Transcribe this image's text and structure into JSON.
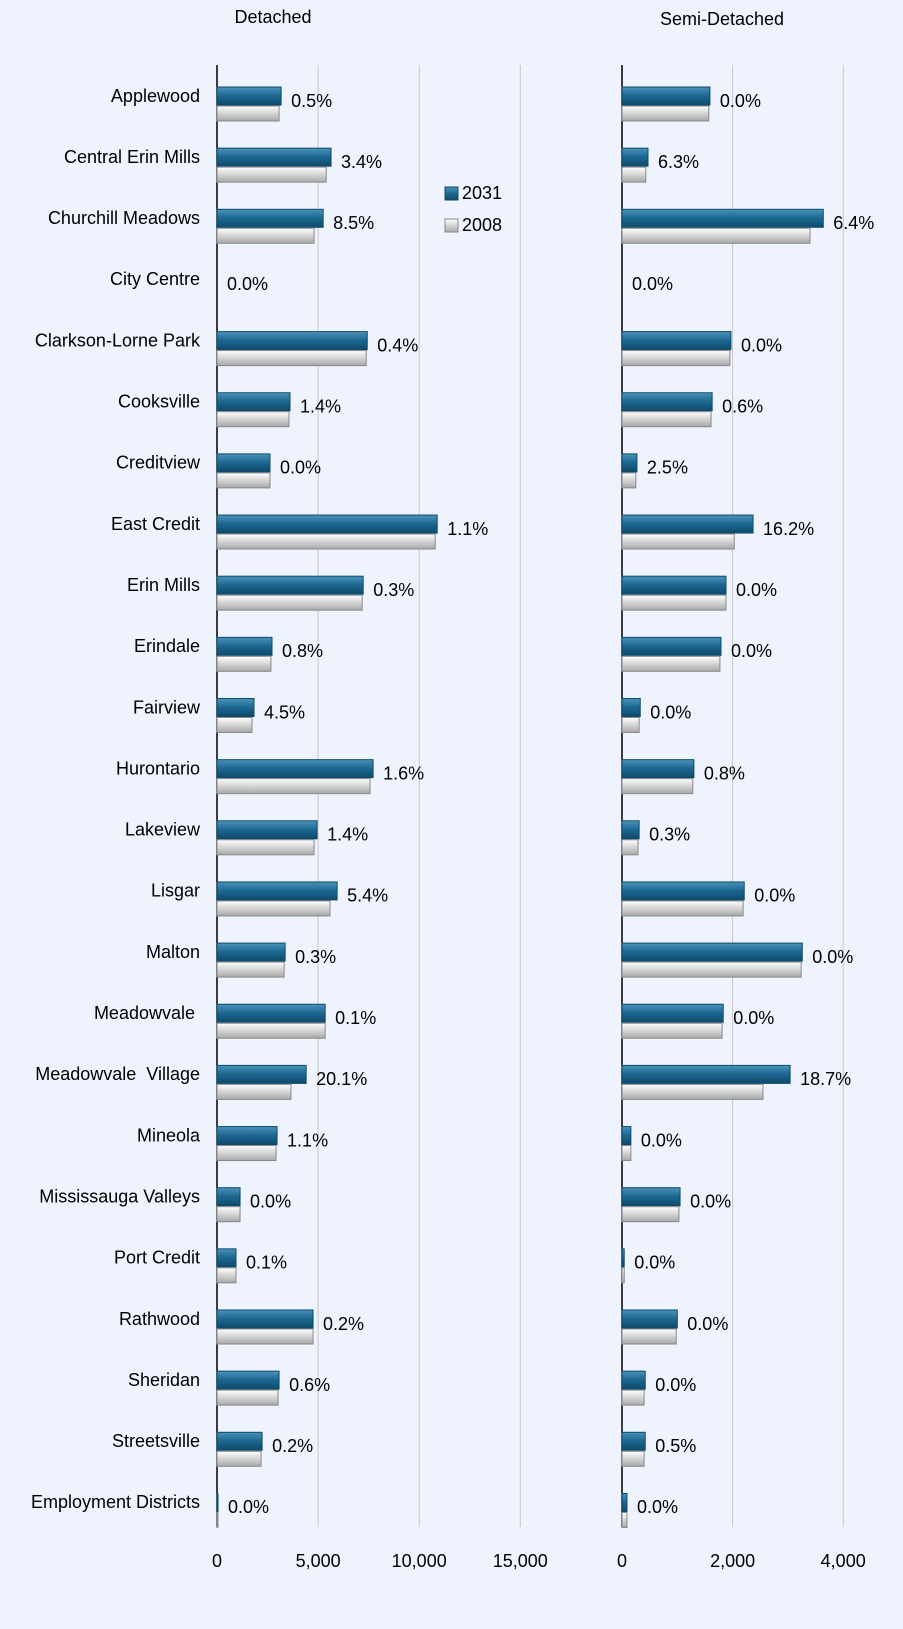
{
  "chart_data": [
    {
      "type": "bar",
      "orientation": "horizontal",
      "title": "Detached",
      "categories": [
        "Applewood",
        "Central Erin Mills",
        "Churchill Meadows",
        "City Centre",
        "Clarkson-Lorne Park",
        "Cooksville",
        "Creditview",
        "East Credit",
        "Erin Mills",
        "Erindale",
        "Fairview",
        "Hurontario",
        "Lakeview",
        "Lisgar",
        "Malton",
        "Meadowvale ",
        "Meadowvale  Village",
        "Mineola",
        "Mississauga Valleys",
        "Port Credit",
        "Rathwood",
        "Sheridan",
        "Streetsville",
        "Employment Districts"
      ],
      "series": [
        {
          "name": "2031",
          "color": "#1b6690",
          "values": [
            3170,
            5640,
            5250,
            0,
            7430,
            3610,
            2620,
            10890,
            7230,
            2720,
            1830,
            7720,
            4950,
            5940,
            3370,
            5350,
            4410,
            2970,
            1140,
            940,
            4750,
            3070,
            2230,
            50
          ]
        },
        {
          "name": "2008",
          "color": "#d4d4d4",
          "values": [
            3070,
            5400,
            4800,
            0,
            7380,
            3560,
            2620,
            10790,
            7180,
            2670,
            1730,
            7570,
            4800,
            5590,
            3320,
            5350,
            3660,
            2920,
            1140,
            940,
            4750,
            3020,
            2180,
            50
          ]
        }
      ],
      "annotations": [
        "0.5%",
        "3.4%",
        "8.5%",
        "0.0%",
        "0.4%",
        "1.4%",
        "0.0%",
        "1.1%",
        "0.3%",
        "0.8%",
        "4.5%",
        "1.6%",
        "1.4%",
        "5.4%",
        "0.3%",
        "0.1%",
        "20.1%",
        "1.1%",
        "0.0%",
        "0.1%",
        "0.2%",
        "0.6%",
        "0.2%",
        "0.0%"
      ],
      "xlim": [
        0,
        17000
      ],
      "xticks": [
        0,
        {
          "value": 5000,
          "label": "5,000"
        },
        {
          "value": 10000,
          "label": "10,000"
        },
        {
          "value": 15000,
          "label": "15,000"
        }
      ],
      "grid": true,
      "legend": "top-right"
    },
    {
      "type": "bar",
      "orientation": "horizontal",
      "title": "Semi-Detached",
      "series": [
        {
          "color": "#1b6690",
          "values": [
            1590,
            470,
            3640,
            0,
            1970,
            1630,
            270,
            2370,
            1880,
            1790,
            330,
            1300,
            310,
            2210,
            3260,
            1830,
            3040,
            160,
            1050,
            40,
            1000,
            420,
            420,
            90
          ]
        },
        {
          "color": "#d4d4d4",
          "values": [
            1570,
            430,
            3400,
            0,
            1950,
            1610,
            250,
            2030,
            1880,
            1770,
            310,
            1280,
            290,
            2190,
            3240,
            1810,
            2550,
            160,
            1030,
            40,
            980,
            400,
            400,
            90
          ]
        }
      ],
      "annotations": [
        "0.0%",
        "6.3%",
        "6.4%",
        "0.0%",
        "0.0%",
        "0.6%",
        "2.5%",
        "16.2%",
        "0.0%",
        "0.0%",
        "0.0%",
        "0.8%",
        "0.3%",
        "0.0%",
        "0.0%",
        "0.0%",
        "18.7%",
        "0.0%",
        "0.0%",
        "0.0%",
        "0.0%",
        "0.0%",
        "0.5%",
        "0.0%"
      ],
      "xlim": [
        0,
        4000
      ],
      "xticks": [
        0,
        {
          "value": 2000,
          "label": "2,000"
        },
        {
          "value": 4000,
          "label": "4,000"
        }
      ],
      "grid": true
    }
  ]
}
